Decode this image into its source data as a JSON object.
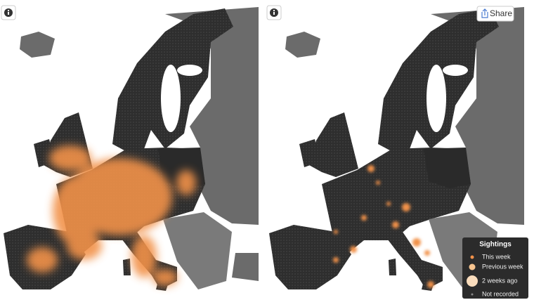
{
  "buttons": {
    "share": "Share"
  },
  "legend": {
    "title": "Sightings",
    "items": [
      {
        "label": "This week"
      },
      {
        "label": "Previous week"
      },
      {
        "label": "2 weeks ago"
      },
      {
        "label": "Not recorded"
      }
    ]
  }
}
